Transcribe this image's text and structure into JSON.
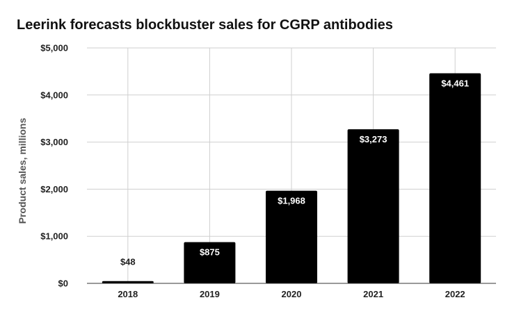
{
  "chart_data": {
    "type": "bar",
    "title": "Leerink forecasts blockbuster sales for CGRP antibodies",
    "xlabel": "",
    "ylabel": "Product sales, millions",
    "categories": [
      "2018",
      "2019",
      "2020",
      "2021",
      "2022"
    ],
    "values": [
      48,
      875,
      1968,
      3273,
      4461
    ],
    "value_labels": [
      "$48",
      "$875",
      "$1,968",
      "$3,273",
      "$4,461"
    ],
    "ylim": [
      0,
      5000
    ],
    "yticks": [
      0,
      1000,
      2000,
      3000,
      4000,
      5000
    ],
    "ytick_labels": [
      "$0",
      "$1,000",
      "$2,000",
      "$3,000",
      "$4,000",
      "$5,000"
    ],
    "grid": true,
    "legend": "none",
    "colors": {
      "bar": "#000000",
      "label_inside": "#ffffff",
      "label_outside": "#222222"
    }
  }
}
